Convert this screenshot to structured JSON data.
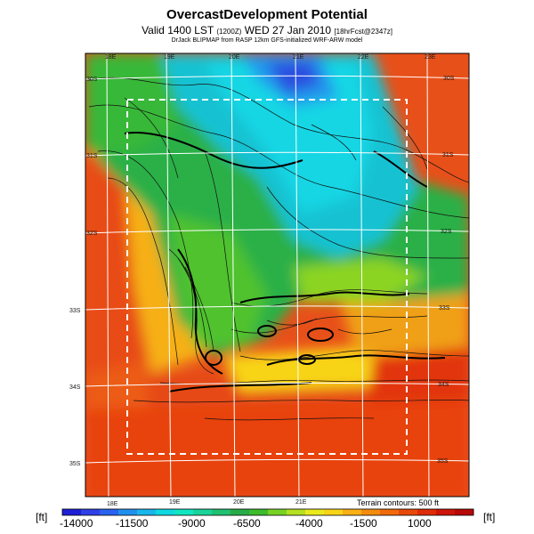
{
  "header": {
    "title": "OvercastDevelopment Potential",
    "valid_prefix": "Valid 1400 LST",
    "valid_utc": "(1200Z)",
    "valid_date": "WED 27 Jan 2010",
    "valid_code": "[18hrFcst@2347z]",
    "source": "DrJack BLIPMAP from RASP 12km GFS-initialized WRF-ARW model"
  },
  "map": {
    "lon_labels_top": [
      "18E",
      "19E",
      "20E",
      "21E",
      "22E",
      "23E"
    ],
    "lon_labels_bottom": [
      "18E",
      "19E",
      "20E",
      "21E"
    ],
    "lat_labels_left": [
      "30S",
      "31S",
      "32S",
      "33S",
      "34S",
      "35S"
    ],
    "lat_labels_right": [
      "30S",
      "31S",
      "32S",
      "33S",
      "34S",
      "35S"
    ],
    "terrain_note": "Terrain contours: 500 ft"
  },
  "colorbar": {
    "unit": "[ft]",
    "tick_labels": [
      "-14000",
      "-11500",
      "-9000",
      "-6500",
      "-4000",
      "-1500",
      "1000"
    ],
    "colors": [
      "#1f1fd6",
      "#2f3fe6",
      "#2a62f0",
      "#2090ee",
      "#18b6ea",
      "#10d8e0",
      "#10e6c0",
      "#18d49a",
      "#20c070",
      "#28ac48",
      "#3cbc2c",
      "#78d224",
      "#b4e020",
      "#e8ea1c",
      "#f8d418",
      "#f8b014",
      "#f48c10",
      "#f06a0c",
      "#e8480a",
      "#de2c08",
      "#cc1408",
      "#b80808"
    ]
  }
}
